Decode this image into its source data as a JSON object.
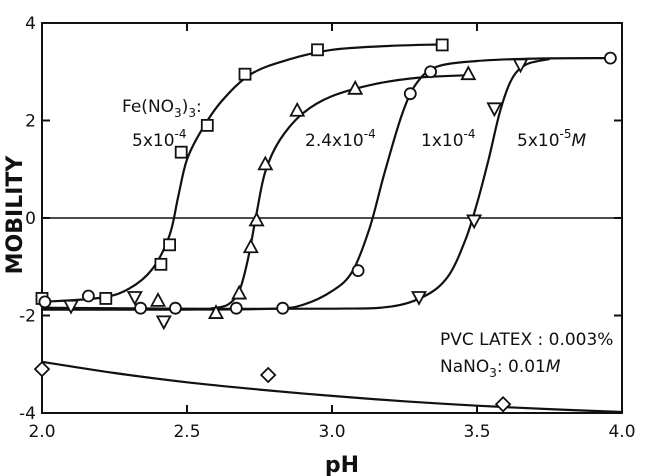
{
  "chart_data": {
    "type": "scatter",
    "title": "",
    "xlabel": "pH",
    "ylabel": "MOBILITY",
    "xlim": [
      2.0,
      4.0
    ],
    "ylim": [
      -4,
      4
    ],
    "xticks": [
      2.0,
      2.5,
      3.0,
      3.5,
      4.0
    ],
    "xtick_labels": [
      "2.0",
      "2.5",
      "3.0",
      "3.5",
      "4.0"
    ],
    "yticks": [
      -4,
      -2,
      0,
      2,
      4
    ],
    "ytick_labels": [
      "-4",
      "-2",
      "0",
      "2",
      "4"
    ],
    "grid": false,
    "series": [
      {
        "name": "5x10-4",
        "marker": "square",
        "points": [
          [
            2.0,
            -1.65
          ],
          [
            2.22,
            -1.65
          ],
          [
            2.41,
            -0.95
          ],
          [
            2.44,
            -0.55
          ],
          [
            2.48,
            1.35
          ],
          [
            2.57,
            1.9
          ],
          [
            2.7,
            2.95
          ],
          [
            2.95,
            3.45
          ],
          [
            3.38,
            3.55
          ]
        ],
        "curve": [
          [
            2.0,
            -1.72
          ],
          [
            2.2,
            -1.64
          ],
          [
            2.3,
            -1.45
          ],
          [
            2.38,
            -1.05
          ],
          [
            2.44,
            -0.35
          ],
          [
            2.47,
            0.45
          ],
          [
            2.5,
            1.2
          ],
          [
            2.55,
            1.8
          ],
          [
            2.62,
            2.4
          ],
          [
            2.72,
            2.95
          ],
          [
            2.85,
            3.25
          ],
          [
            3.0,
            3.45
          ],
          [
            3.2,
            3.53
          ],
          [
            3.38,
            3.56
          ]
        ]
      },
      {
        "name": "2.4x10-4",
        "marker": "triangle",
        "points": [
          [
            2.4,
            -1.7
          ],
          [
            2.6,
            -1.95
          ],
          [
            2.68,
            -1.55
          ],
          [
            2.72,
            -0.6
          ],
          [
            2.74,
            -0.05
          ],
          [
            2.77,
            1.1
          ],
          [
            2.88,
            2.2
          ],
          [
            3.08,
            2.65
          ],
          [
            3.47,
            2.95
          ]
        ],
        "curve": [
          [
            2.58,
            -1.86
          ],
          [
            2.64,
            -1.78
          ],
          [
            2.68,
            -1.5
          ],
          [
            2.71,
            -0.85
          ],
          [
            2.74,
            0.1
          ],
          [
            2.77,
            0.95
          ],
          [
            2.82,
            1.6
          ],
          [
            2.9,
            2.15
          ],
          [
            3.0,
            2.5
          ],
          [
            3.15,
            2.75
          ],
          [
            3.3,
            2.88
          ],
          [
            3.47,
            2.93
          ]
        ]
      },
      {
        "name": "1x10-4",
        "marker": "circle",
        "points": [
          [
            2.01,
            -1.72
          ],
          [
            2.16,
            -1.6
          ],
          [
            2.34,
            -1.85
          ],
          [
            2.46,
            -1.85
          ],
          [
            2.67,
            -1.85
          ],
          [
            2.83,
            -1.85
          ],
          [
            3.09,
            -1.08
          ],
          [
            3.27,
            2.55
          ],
          [
            3.34,
            3.0
          ],
          [
            3.96,
            3.28
          ]
        ],
        "curve": [
          [
            2.0,
            -1.88
          ],
          [
            2.5,
            -1.88
          ],
          [
            2.8,
            -1.86
          ],
          [
            2.9,
            -1.78
          ],
          [
            3.0,
            -1.5
          ],
          [
            3.07,
            -1.1
          ],
          [
            3.13,
            -0.2
          ],
          [
            3.18,
            0.9
          ],
          [
            3.24,
            2.1
          ],
          [
            3.29,
            2.75
          ],
          [
            3.36,
            3.1
          ],
          [
            3.5,
            3.22
          ],
          [
            3.7,
            3.27
          ],
          [
            3.96,
            3.28
          ]
        ]
      },
      {
        "name": "5x10-5M",
        "marker": "triangle-down",
        "points": [
          [
            2.1,
            -1.8
          ],
          [
            2.32,
            -1.62
          ],
          [
            2.42,
            -2.12
          ],
          [
            3.3,
            -1.62
          ],
          [
            3.49,
            -0.05
          ],
          [
            3.56,
            2.25
          ],
          [
            3.65,
            3.15
          ]
        ],
        "curve": [
          [
            2.0,
            -1.84
          ],
          [
            2.5,
            -1.86
          ],
          [
            3.0,
            -1.86
          ],
          [
            3.2,
            -1.82
          ],
          [
            3.32,
            -1.6
          ],
          [
            3.4,
            -1.2
          ],
          [
            3.46,
            -0.45
          ],
          [
            3.5,
            0.3
          ],
          [
            3.54,
            1.2
          ],
          [
            3.58,
            2.2
          ],
          [
            3.62,
            2.85
          ],
          [
            3.67,
            3.15
          ],
          [
            3.75,
            3.26
          ]
        ]
      },
      {
        "name": "",
        "marker": "diamond",
        "points": [
          [
            2.0,
            -3.1
          ],
          [
            2.78,
            -3.22
          ],
          [
            3.59,
            -3.82
          ]
        ],
        "curve": [
          [
            2.0,
            -2.95
          ],
          [
            2.25,
            -3.18
          ],
          [
            2.5,
            -3.37
          ],
          [
            2.75,
            -3.52
          ],
          [
            3.0,
            -3.65
          ],
          [
            3.25,
            -3.76
          ],
          [
            3.5,
            -3.85
          ],
          [
            3.75,
            -3.92
          ],
          [
            4.0,
            -3.98
          ]
        ]
      }
    ],
    "annotations": {
      "fe_label": "Fe(NO3)3:",
      "conc_1": "5x10-4",
      "conc_2": "2.4x10-4",
      "conc_3": "1x10-4",
      "conc_4": "5x10-5M",
      "condition_1": "PVC LATEX : 0.003%",
      "condition_2": "NaNO3: 0.01M"
    }
  }
}
